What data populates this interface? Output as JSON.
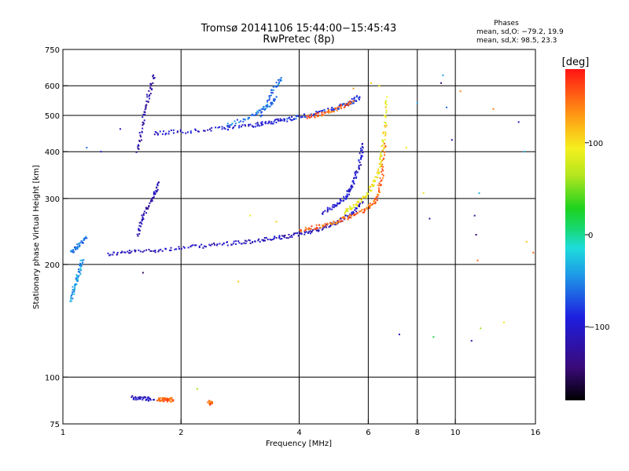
{
  "chart_data": {
    "type": "scatter",
    "title": "Tromsø 20141106 15:44:00−15:45:43",
    "subtitle": "RwPretec (8p)",
    "xlabel": "Frequency [MHz]",
    "ylabel": "Stationary phase Virtual Height [km]",
    "xscale": "log",
    "yscale": "log",
    "xlim": [
      1,
      16
    ],
    "ylim": [
      75,
      750
    ],
    "xticks": [
      1,
      2,
      4,
      6,
      8,
      10,
      16
    ],
    "xtick_labels": [
      "1",
      "2",
      "4",
      "6",
      "8",
      "10",
      "16"
    ],
    "xgrid": [
      2,
      4,
      6,
      8,
      10
    ],
    "yticks": [
      75,
      100,
      200,
      300,
      400,
      500,
      600,
      750
    ],
    "ytick_labels": [
      "75",
      "100",
      "200",
      "300",
      "400",
      "500",
      "600",
      "750"
    ],
    "ygrid": [
      100,
      200,
      300,
      400,
      500,
      600
    ],
    "grid": true,
    "stats": {
      "heading": "Phases",
      "line_o": "mean, sd,O: −79.2, 19.9",
      "line_x": "mean, sd,X:  98.5, 23.3"
    },
    "colorbar": {
      "label": "[deg]",
      "range": [
        -180,
        180
      ],
      "ticks": [
        100,
        0,
        -100
      ],
      "tick_labels": [
        "100",
        "0",
        "−100"
      ]
    },
    "traces": [
      {
        "x": [
          1.3,
          1.5,
          1.8,
          2.2,
          2.6,
          3.0,
          3.4,
          3.8,
          4.2,
          4.6,
          5.0,
          5.4,
          5.8
        ],
        "y": [
          213,
          216,
          219,
          223,
          227,
          230,
          234,
          238,
          244,
          250,
          259,
          272,
          292
        ],
        "phase": -110
      },
      {
        "x": [
          4.0,
          4.5,
          5.0,
          5.5,
          6.0,
          6.3,
          6.5,
          6.6
        ],
        "y": [
          246,
          252,
          260,
          270,
          283,
          300,
          340,
          420
        ],
        "phase": 150
      },
      {
        "x": [
          5.2,
          5.6,
          6.0,
          6.3,
          6.5,
          6.6,
          6.7
        ],
        "y": [
          275,
          290,
          310,
          340,
          390,
          450,
          560
        ],
        "phase": 95
      },
      {
        "x": [
          4.6,
          5.0,
          5.3,
          5.5,
          5.7,
          5.8
        ],
        "y": [
          275,
          290,
          305,
          330,
          370,
          420
        ],
        "phase": -100
      },
      {
        "x": [
          1.7,
          2.0,
          2.5,
          3.0,
          3.3,
          3.6
        ],
        "y": [
          448,
          452,
          460,
          470,
          477,
          485
        ],
        "phase": -100
      },
      {
        "x": [
          3.6,
          4.0,
          4.5,
          5.0,
          5.4,
          5.7
        ],
        "y": [
          485,
          495,
          508,
          525,
          540,
          560
        ],
        "phase": -80
      },
      {
        "x": [
          4.2,
          4.6,
          5.0,
          5.5
        ],
        "y": [
          495,
          505,
          520,
          545
        ],
        "phase": 150
      },
      {
        "x": [
          2.6,
          3.0,
          3.3,
          3.5
        ],
        "y": [
          470,
          495,
          525,
          560
        ],
        "phase": -60
      },
      {
        "x": [
          3.2,
          3.4,
          3.6
        ],
        "y": [
          500,
          580,
          630
        ],
        "phase": -60
      },
      {
        "x": [
          1.55,
          1.6,
          1.65,
          1.7
        ],
        "y": [
          400,
          480,
          560,
          640
        ],
        "phase": -120
      },
      {
        "x": [
          1.55,
          1.6,
          1.7,
          1.75
        ],
        "y": [
          240,
          270,
          300,
          330
        ],
        "phase": -115
      },
      {
        "x": [
          1.05,
          1.07,
          1.1,
          1.12
        ],
        "y": [
          160,
          175,
          190,
          205
        ],
        "phase": -40
      },
      {
        "x": [
          1.05,
          1.1,
          1.15
        ],
        "y": [
          215,
          225,
          235
        ],
        "phase": -60
      },
      {
        "x": [
          1.5,
          1.6,
          1.7
        ],
        "y": [
          88,
          88,
          87
        ],
        "phase": -110
      },
      {
        "x": [
          1.75,
          1.8,
          1.85,
          1.9
        ],
        "y": [
          87,
          87,
          87,
          87
        ],
        "phase": 150
      },
      {
        "x": [
          2.35,
          2.4
        ],
        "y": [
          86,
          85
        ],
        "phase": 150
      }
    ],
    "scatter_points": [
      {
        "x": 1.15,
        "y": 410,
        "phase": -60
      },
      {
        "x": 1.25,
        "y": 400,
        "phase": -90
      },
      {
        "x": 1.4,
        "y": 460,
        "phase": -100
      },
      {
        "x": 2.8,
        "y": 180,
        "phase": 110
      },
      {
        "x": 3.0,
        "y": 270,
        "phase": 90
      },
      {
        "x": 3.5,
        "y": 260,
        "phase": 110
      },
      {
        "x": 5.5,
        "y": 590,
        "phase": 130
      },
      {
        "x": 6.1,
        "y": 610,
        "phase": 110
      },
      {
        "x": 6.4,
        "y": 600,
        "phase": 100
      },
      {
        "x": 7.2,
        "y": 130,
        "phase": -110
      },
      {
        "x": 8.0,
        "y": 540,
        "phase": -40
      },
      {
        "x": 8.3,
        "y": 310,
        "phase": 100
      },
      {
        "x": 8.6,
        "y": 265,
        "phase": -130
      },
      {
        "x": 8.8,
        "y": 128,
        "phase": 20
      },
      {
        "x": 9.2,
        "y": 610,
        "phase": -150
      },
      {
        "x": 9.3,
        "y": 640,
        "phase": -40
      },
      {
        "x": 9.5,
        "y": 525,
        "phase": -60
      },
      {
        "x": 9.8,
        "y": 430,
        "phase": -120
      },
      {
        "x": 11.0,
        "y": 125,
        "phase": -120
      },
      {
        "x": 11.2,
        "y": 270,
        "phase": -130
      },
      {
        "x": 11.3,
        "y": 240,
        "phase": -150
      },
      {
        "x": 11.4,
        "y": 205,
        "phase": 150
      },
      {
        "x": 11.5,
        "y": 310,
        "phase": -30
      },
      {
        "x": 11.6,
        "y": 135,
        "phase": 60
      },
      {
        "x": 12.5,
        "y": 520,
        "phase": 140
      },
      {
        "x": 13.3,
        "y": 140,
        "phase": 100
      },
      {
        "x": 14.5,
        "y": 480,
        "phase": -120
      },
      {
        "x": 15.0,
        "y": 400,
        "phase": -30
      },
      {
        "x": 15.2,
        "y": 230,
        "phase": 110
      },
      {
        "x": 15.8,
        "y": 215,
        "phase": 150
      },
      {
        "x": 1.6,
        "y": 190,
        "phase": -150
      },
      {
        "x": 2.2,
        "y": 93,
        "phase": 60
      },
      {
        "x": 7.5,
        "y": 410,
        "phase": 100
      },
      {
        "x": 10.3,
        "y": 580,
        "phase": 140
      }
    ]
  }
}
